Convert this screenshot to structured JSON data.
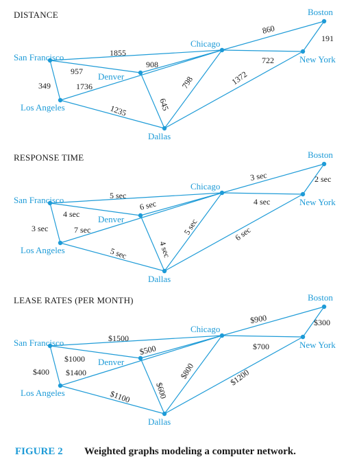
{
  "cities": {
    "SF": "San Francisco",
    "LA": "Los Angeles",
    "DEN": "Denver",
    "CHI": "Chicago",
    "DAL": "Dallas",
    "BOS": "Boston",
    "NY": "New York"
  },
  "graphs": [
    {
      "title": "DISTANCE",
      "weights": {
        "SF-CHI": "1855",
        "SF-DEN": "957",
        "SF-LA": "349",
        "LA-CHI": "1736",
        "LA-DAL": "1235",
        "DEN-CHI": "908",
        "DEN-DAL": "645",
        "CHI-DAL": "798",
        "DAL-NY": "1372",
        "CHI-BOS": "860",
        "CHI-NY": "722",
        "BOS-NY": "191"
      }
    },
    {
      "title": "RESPONSE TIME",
      "weights": {
        "SF-CHI": "5 sec",
        "SF-DEN": "4 sec",
        "SF-LA": "3 sec",
        "LA-CHI": "7 sec",
        "LA-DAL": "5 sec",
        "DEN-CHI": "6 sec",
        "DEN-DAL": "4 sec",
        "CHI-DAL": "5 sec",
        "DAL-NY": "6 sec",
        "CHI-BOS": "3 sec",
        "CHI-NY": "4 sec",
        "BOS-NY": "2 sec"
      }
    },
    {
      "title": "LEASE RATES (PER MONTH)",
      "weights": {
        "SF-CHI": "$1500",
        "SF-DEN": "$1000",
        "SF-LA": "$400",
        "LA-CHI": "$1400",
        "LA-DAL": "$1100",
        "DEN-CHI": "$500",
        "DEN-DAL": "$600",
        "CHI-DAL": "$800",
        "DAL-NY": "$1200",
        "CHI-BOS": "$900",
        "CHI-NY": "$700",
        "BOS-NY": "$300"
      }
    }
  ],
  "caption": {
    "number": "FIGURE 2",
    "text": "Weighted graphs modeling a computer network."
  },
  "colors": {
    "accent": "#1e9bd7",
    "text": "#1a1a1a"
  }
}
